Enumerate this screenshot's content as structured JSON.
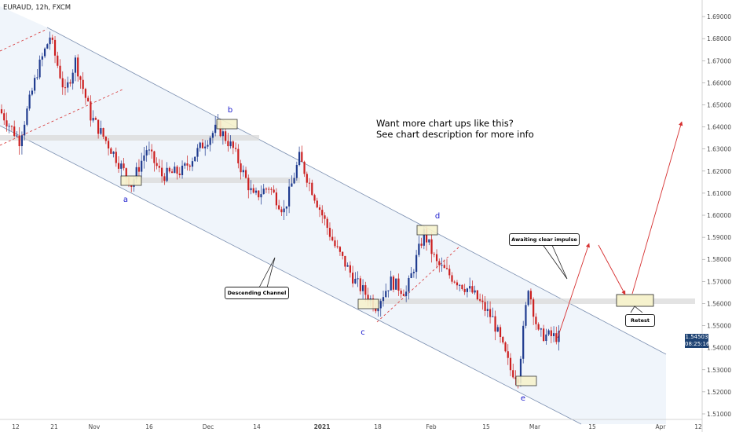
{
  "symbol_label": "EURAUD, 12h, FXCM",
  "promo": {
    "line1": "Want more chart ups like this?",
    "line2": "See chart description for more info"
  },
  "notes": {
    "descending_channel": "Descending Channel",
    "awaiting": "Awaiting clear impulse",
    "retest": "Retest"
  },
  "price_badge": {
    "price": "1.54503",
    "countdown": "08:25:16"
  },
  "colors": {
    "bull": "#1f3b8f",
    "bear": "#cc1f1f",
    "channel_fill": "#eef4fb",
    "projection": "#d63030",
    "wave_label": "#1a1acd",
    "zone_fill": "#f6f2cd"
  },
  "chart_data": {
    "type": "candlestick",
    "symbol": "EURAUD",
    "timeframe": "12h",
    "source": "FXCM",
    "ylim": [
      1.5075,
      1.6975
    ],
    "y_ticks": [
      "1.69000",
      "1.68000",
      "1.67000",
      "1.66000",
      "1.65000",
      "1.64000",
      "1.63000",
      "1.62000",
      "1.61000",
      "1.60000",
      "1.59000",
      "1.58000",
      "1.57000",
      "1.56000",
      "1.55000",
      "1.54000",
      "1.53000",
      "1.52000",
      "1.51000"
    ],
    "x_ticks": [
      {
        "label": "12",
        "bold": false
      },
      {
        "label": "21",
        "bold": false
      },
      {
        "label": "Nov",
        "bold": false
      },
      {
        "label": "16",
        "bold": false
      },
      {
        "label": "Dec",
        "bold": false
      },
      {
        "label": "14",
        "bold": false
      },
      {
        "label": "2021",
        "bold": true
      },
      {
        "label": "18",
        "bold": false
      },
      {
        "label": "Feb",
        "bold": false
      },
      {
        "label": "15",
        "bold": false
      },
      {
        "label": "Mar",
        "bold": false
      },
      {
        "label": "15",
        "bold": false
      },
      {
        "label": "Apr",
        "bold": false
      },
      {
        "label": "12",
        "bold": false
      }
    ],
    "candle_bars": 220,
    "wave_labels": [
      "a",
      "b",
      "c",
      "d",
      "e"
    ],
    "approximate_path": [
      {
        "bar": 0,
        "price": 1.648
      },
      {
        "bar": 8,
        "price": 1.634
      },
      {
        "bar": 15,
        "price": 1.665
      },
      {
        "bar": 20,
        "price": 1.681
      },
      {
        "bar": 26,
        "price": 1.655
      },
      {
        "bar": 30,
        "price": 1.67
      },
      {
        "bar": 36,
        "price": 1.645
      },
      {
        "bar": 44,
        "price": 1.63
      },
      {
        "bar": 52,
        "price": 1.614
      },
      {
        "bar": 58,
        "price": 1.63
      },
      {
        "bar": 64,
        "price": 1.618
      },
      {
        "bar": 72,
        "price": 1.62
      },
      {
        "bar": 80,
        "price": 1.632
      },
      {
        "bar": 86,
        "price": 1.64
      },
      {
        "bar": 92,
        "price": 1.63
      },
      {
        "bar": 100,
        "price": 1.608
      },
      {
        "bar": 106,
        "price": 1.613
      },
      {
        "bar": 112,
        "price": 1.602
      },
      {
        "bar": 118,
        "price": 1.626
      },
      {
        "bar": 126,
        "price": 1.603
      },
      {
        "bar": 132,
        "price": 1.586
      },
      {
        "bar": 140,
        "price": 1.57
      },
      {
        "bar": 148,
        "price": 1.559
      },
      {
        "bar": 154,
        "price": 1.57
      },
      {
        "bar": 160,
        "price": 1.565
      },
      {
        "bar": 167,
        "price": 1.592
      },
      {
        "bar": 172,
        "price": 1.578
      },
      {
        "bar": 178,
        "price": 1.572
      },
      {
        "bar": 186,
        "price": 1.565
      },
      {
        "bar": 194,
        "price": 1.553
      },
      {
        "bar": 201,
        "price": 1.53
      },
      {
        "bar": 204,
        "price": 1.527
      },
      {
        "bar": 208,
        "price": 1.568
      },
      {
        "bar": 212,
        "price": 1.546
      },
      {
        "bar": 218,
        "price": 1.545
      }
    ]
  }
}
